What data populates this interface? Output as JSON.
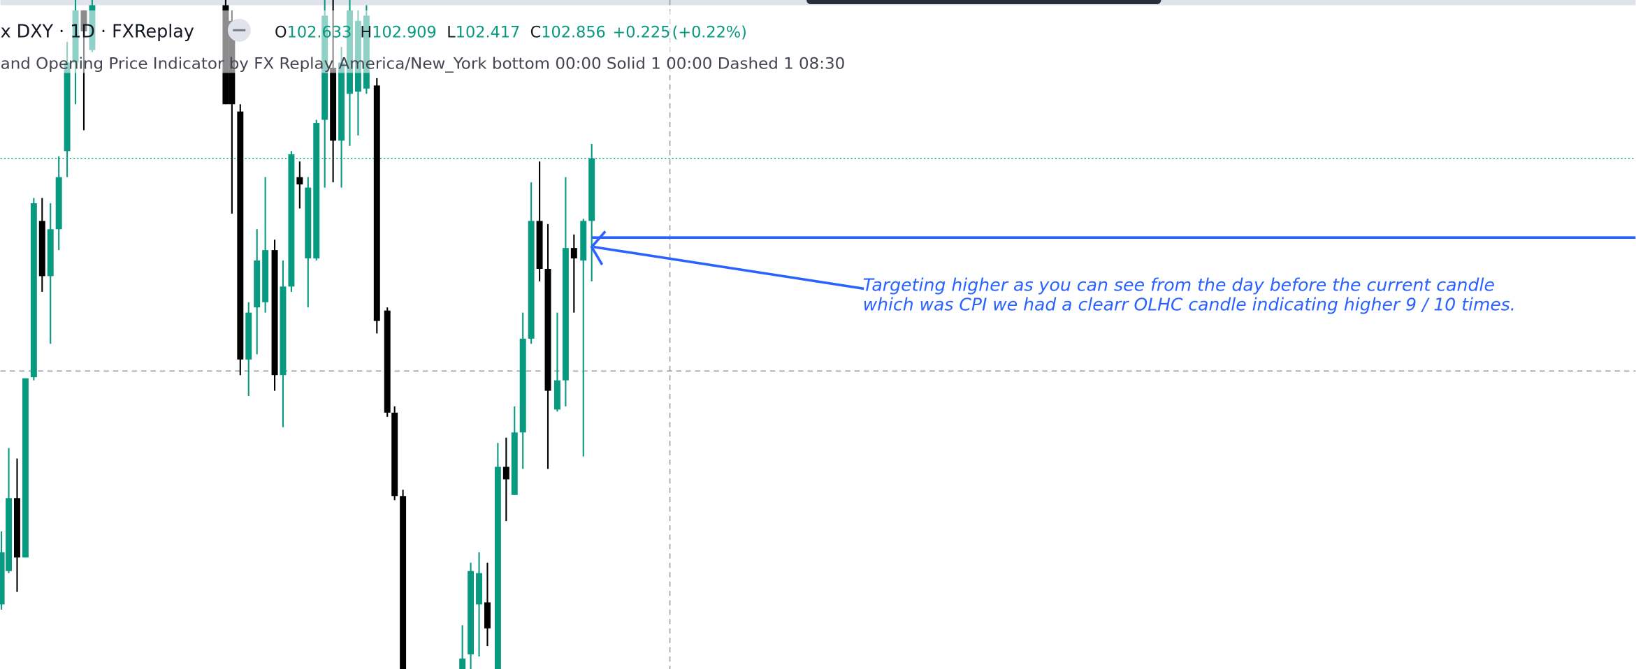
{
  "header": {
    "symbol": "x DXY · 1D · FXReplay",
    "ohlc": [
      {
        "label": "O",
        "value": "102.633"
      },
      {
        "label": "H",
        "value": "102.909"
      },
      {
        "label": "L",
        "value": "102.417"
      },
      {
        "label": "C",
        "value": "102.856"
      }
    ],
    "change": "+0.225",
    "change_percent": "(+0.22%)"
  },
  "indicator": "and Opening Price Indicator by FX Replay America/New_York bottom 00:00 Solid 1 00:00 Dashed 1 08:30",
  "annotation": {
    "lines": [
      "Targeting higher as you can see from the day before the current candle",
      "which was CPI we had a clearr OLHC candle indicating higher 9 / 10 times."
    ]
  }
}
